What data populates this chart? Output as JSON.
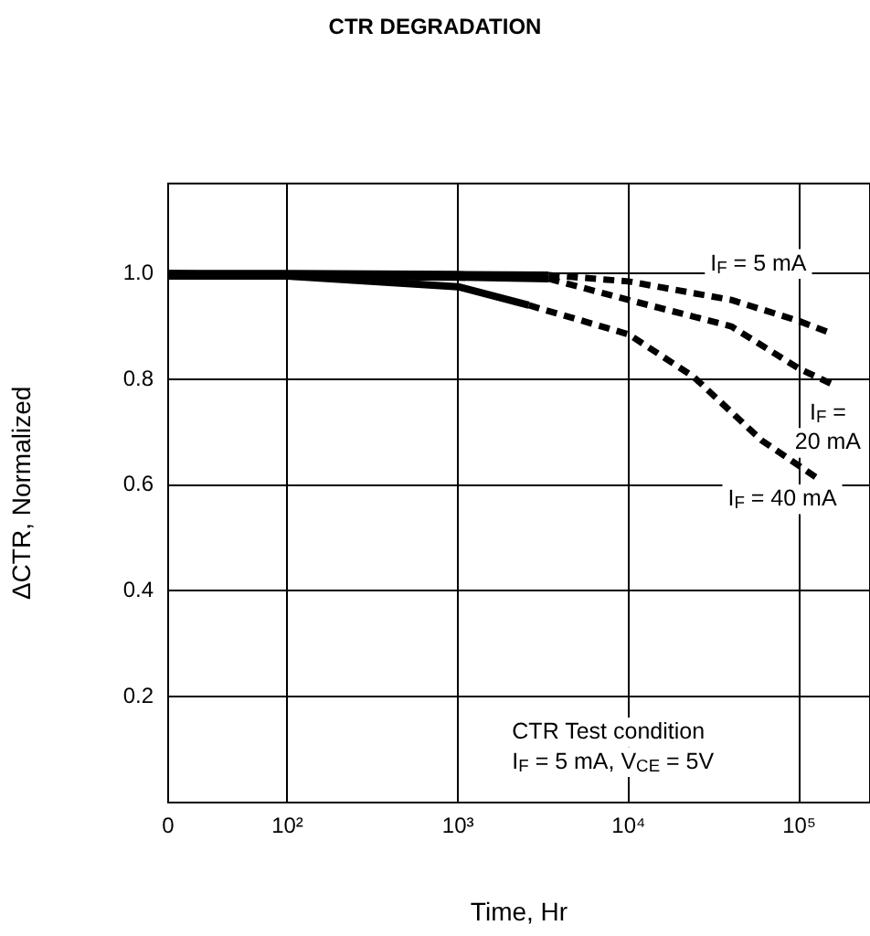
{
  "chart_data": {
    "type": "line",
    "title": "CTR DEGRADATION",
    "xlabel": "Time, Hr",
    "ylabel": "ΔCTR, Normalized",
    "log": "x",
    "grid": true,
    "legend": false,
    "marker": "none",
    "xlim": [
      0,
      260000
    ],
    "xticks": [
      0,
      {
        "value": 100,
        "label": "10²"
      },
      {
        "value": 1000,
        "label": "10³"
      },
      {
        "value": 10000,
        "label": "10⁴"
      },
      {
        "value": 100000,
        "label": "10⁵"
      }
    ],
    "ylim": [
      0,
      1.17
    ],
    "yticks": [
      0.2,
      0.4,
      0.6,
      0.8,
      {
        "value": 1,
        "label": "1.0"
      }
    ],
    "series": [
      {
        "color": "#000000",
        "line_style": "solid",
        "x": [
          20,
          100,
          1000,
          3400
        ],
        "values": [
          1.0,
          1.0,
          0.998,
          0.997
        ]
      },
      {
        "color": "#000000",
        "line_style": "dashed",
        "x": [
          3400,
          10000,
          40000,
          100000,
          145000
        ],
        "values": [
          0.997,
          0.985,
          0.95,
          0.91,
          0.89
        ]
      },
      {
        "color": "#000000",
        "line_style": "solid",
        "x": [
          20,
          100,
          1000,
          3400
        ],
        "values": [
          0.995,
          0.995,
          0.993,
          0.99
        ]
      },
      {
        "color": "#000000",
        "line_style": "dashed",
        "x": [
          3400,
          10000,
          40000,
          100000,
          158000
        ],
        "values": [
          0.99,
          0.95,
          0.9,
          0.82,
          0.79
        ]
      },
      {
        "color": "#000000",
        "line_style": "solid",
        "x": [
          20,
          100,
          1000,
          2600
        ],
        "values": [
          1.0,
          0.995,
          0.975,
          0.94
        ]
      },
      {
        "color": "#000000",
        "line_style": "dashed",
        "x": [
          2600,
          10000,
          24000,
          60000,
          125000
        ],
        "values": [
          0.94,
          0.885,
          0.805,
          0.685,
          0.615
        ]
      }
    ],
    "annotations": [
      "I$_{F}$ = 5 mA",
      "I$_{F}$ =\n20 mA",
      "I$_{F}$ = 40 mA",
      "CTR Test condition\nI$_{F}$ = 5 mA, V$_{CE}$ = 5V"
    ]
  }
}
